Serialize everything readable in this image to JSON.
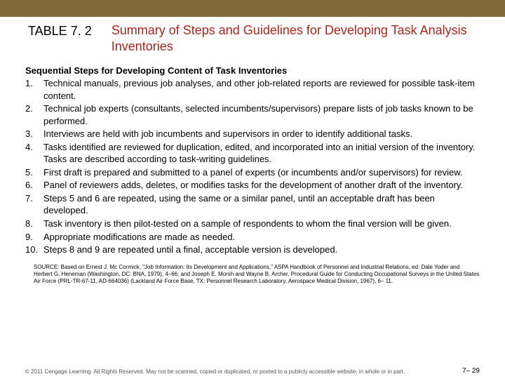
{
  "colors": {
    "topbar": "#806a3b",
    "title_color": "#b02418",
    "text_color": "#000000",
    "copyright_color": "#555555",
    "background": "#ffffff"
  },
  "header": {
    "table_label": "TABLE 7. 2",
    "title": "Summary of Steps and Guidelines for Developing Task Analysis Inventories"
  },
  "section_heading": "Sequential Steps for Developing Content of Task Inventories",
  "steps": [
    {
      "num": "1.",
      "text": "Technical manuals, previous job analyses, and other job-related reports are reviewed for possible task-item content."
    },
    {
      "num": "2.",
      "text": "Technical job experts (consultants, selected incumbents/supervisors) prepare lists of job tasks known to be performed."
    },
    {
      "num": "3.",
      "text": "Interviews are held with job incumbents and supervisors in order to identify additional tasks."
    },
    {
      "num": "4.",
      "text": "Tasks identified are reviewed for duplication, edited, and incorporated into an initial version of the inventory. Tasks are described according to task-writing guidelines."
    },
    {
      "num": "5.",
      "text": "First draft is prepared and submitted to a panel of experts (or incumbents and/or supervisors) for review."
    },
    {
      "num": "6.",
      "text": "Panel of reviewers adds, deletes, or modifies tasks for the development of another draft of the inventory."
    },
    {
      "num": "7.",
      "text": "Steps 5 and 6 are repeated, using the same or a similar panel, until an acceptable draft has been developed."
    },
    {
      "num": "8.",
      "text": "Task inventory is then pilot-tested on a sample of respondents to whom the final version will be given."
    },
    {
      "num": "9.",
      "text": "Appropriate modifications are made as needed."
    },
    {
      "num": "10.",
      "text": "Steps 8 and 9 are repeated until a final, acceptable version is developed."
    }
  ],
  "source": "SOURCE: Based on Ernest J. Mc Cormick, \"Job Information: Its Development and Applications,\" ASPA Handbook of Personnel and Industrial Relations, ed. Dale Yoder and Herbert G. Heneman (Washington, DC: BNA, 1979), 4–66; and Joseph E. Morsh and Wayne B. Archer, Procedural Guide for Conducting Occupational Surveys in the United States Air Force (PRL-TR-67-11, AD-664036) (Lackland Air Force Base, TX: Personnel Research Laboratory, Aerospace Medical Division, 1967), 6– 11.",
  "footer": {
    "copyright": "© 2011 Cengage Learning. All Rights Reserved. May not be scanned, copied or duplicated, or posted to a publicly accessible website, in whole or in part.",
    "pagenum": "7– 29"
  }
}
